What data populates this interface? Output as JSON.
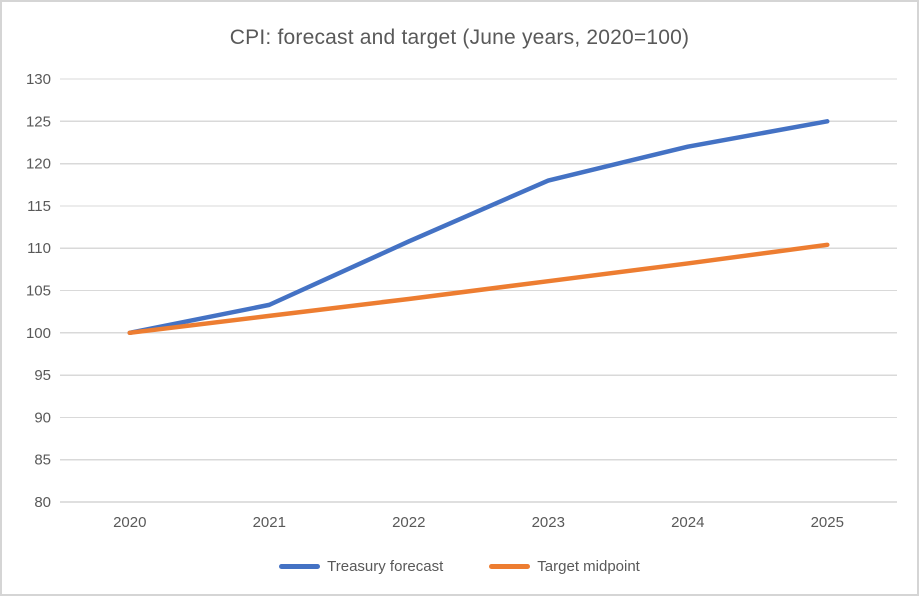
{
  "title": "CPI: forecast and target (June years, 2020=100)",
  "colors": {
    "text": "#595959",
    "gridline": "#d9d9d9",
    "axis_line": "#bfbfbf",
    "frame_border": "#d5d5d5",
    "background": "#ffffff",
    "series_blue": "#4472c4",
    "series_orange": "#ed7d31"
  },
  "chart_data": {
    "type": "line",
    "title": "CPI: forecast and target (June years, 2020=100)",
    "categories": [
      "2020",
      "2021",
      "2022",
      "2023",
      "2024",
      "2025"
    ],
    "series": [
      {
        "name": "Treasury forecast",
        "color": "#4472c4",
        "values": [
          100,
          103.3,
          110.8,
          118,
          122,
          125
        ]
      },
      {
        "name": "Target midpoint",
        "color": "#ed7d31",
        "values": [
          100,
          102,
          104,
          106.1,
          108.2,
          110.4
        ]
      }
    ],
    "xlabel": "",
    "ylabel": "",
    "ylim": [
      80,
      130
    ],
    "ytick_step": 5,
    "yticks": [
      130,
      125,
      120,
      115,
      110,
      105,
      100,
      95,
      90,
      85,
      80
    ],
    "grid": true,
    "legend_position": "bottom-center"
  }
}
